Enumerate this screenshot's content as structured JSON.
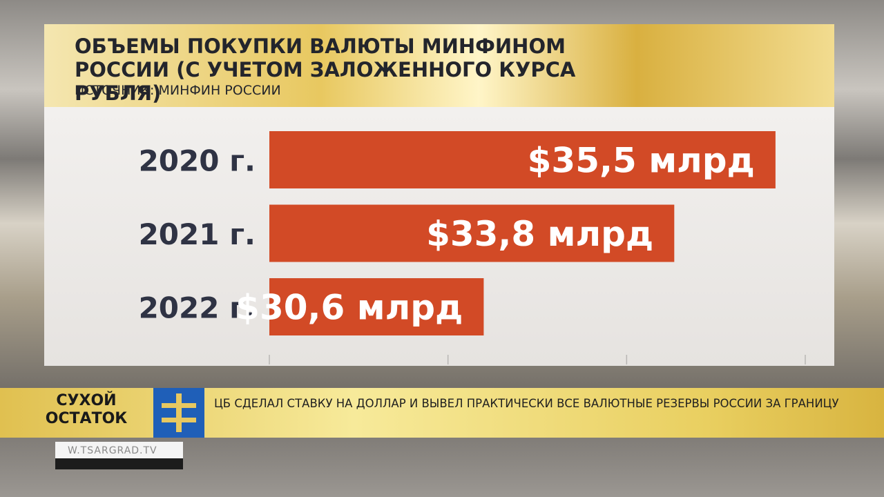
{
  "chart_data": {
    "type": "hbar",
    "title": "ОБЪЕМЫ ПОКУПКИ ВАЛЮТЫ МИНФИНОМ РОССИИ (С УЧЕТОМ ЗАЛОЖЕННОГО КУРСА РУБЛЯ)",
    "subtitle": "ИСТОЧНИК: МИНФИН РОССИИ",
    "categories": [
      "2020 г.",
      "2021 г.",
      "2022 г."
    ],
    "values": [
      35.5,
      33.8,
      30.6
    ],
    "value_labels": [
      "$35,5 млрд",
      "$33,8 млрд",
      "$30,6 млрд"
    ],
    "color": "#d24a26",
    "xlim": [
      27,
      36
    ],
    "xticks": [
      27,
      30,
      33,
      36
    ]
  },
  "ticker": {
    "show": "СУХОЙ ОСТАТОК",
    "headline": "ЦБ СДЕЛАЛ СТАВКУ НА ДОЛЛАР И ВЫВЕЛ ПРАКТИЧЕСКИ ВСЕ ВАЛЮТНЫЕ РЕЗЕРВЫ РОССИИ ЗА ГРАНИЦУ",
    "site": "W.TSARGRAD.TV"
  }
}
